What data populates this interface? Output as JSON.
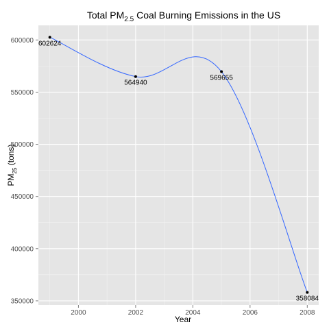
{
  "chart_data": {
    "type": "line",
    "title": {
      "prefix": "Total PM",
      "subscript": "2.5",
      "suffix": " Coal Burning Emissions in the US"
    },
    "xlabel": "Year",
    "ylabel": {
      "prefix": "PM",
      "subscript": "25",
      "suffix": " (tons)"
    },
    "x": [
      1999,
      2002,
      2005,
      2008
    ],
    "y": [
      602624,
      564940,
      569655,
      358084
    ],
    "point_labels": [
      "602624",
      "564940",
      "569655",
      "358084"
    ],
    "xlim": [
      1998.6,
      2008.4
    ],
    "ylim": [
      346000,
      614000
    ],
    "x_ticks": [
      2000,
      2002,
      2004,
      2006,
      2008
    ],
    "y_ticks": [
      350000,
      400000,
      450000,
      500000,
      550000,
      600000
    ],
    "smooth": true,
    "grid": true,
    "colors": {
      "panel_background": "#e5e5e5",
      "grid_major": "#ffffff",
      "grid_minor": "#f2f2f2",
      "line": "#3366ff",
      "point": "#000000"
    }
  }
}
